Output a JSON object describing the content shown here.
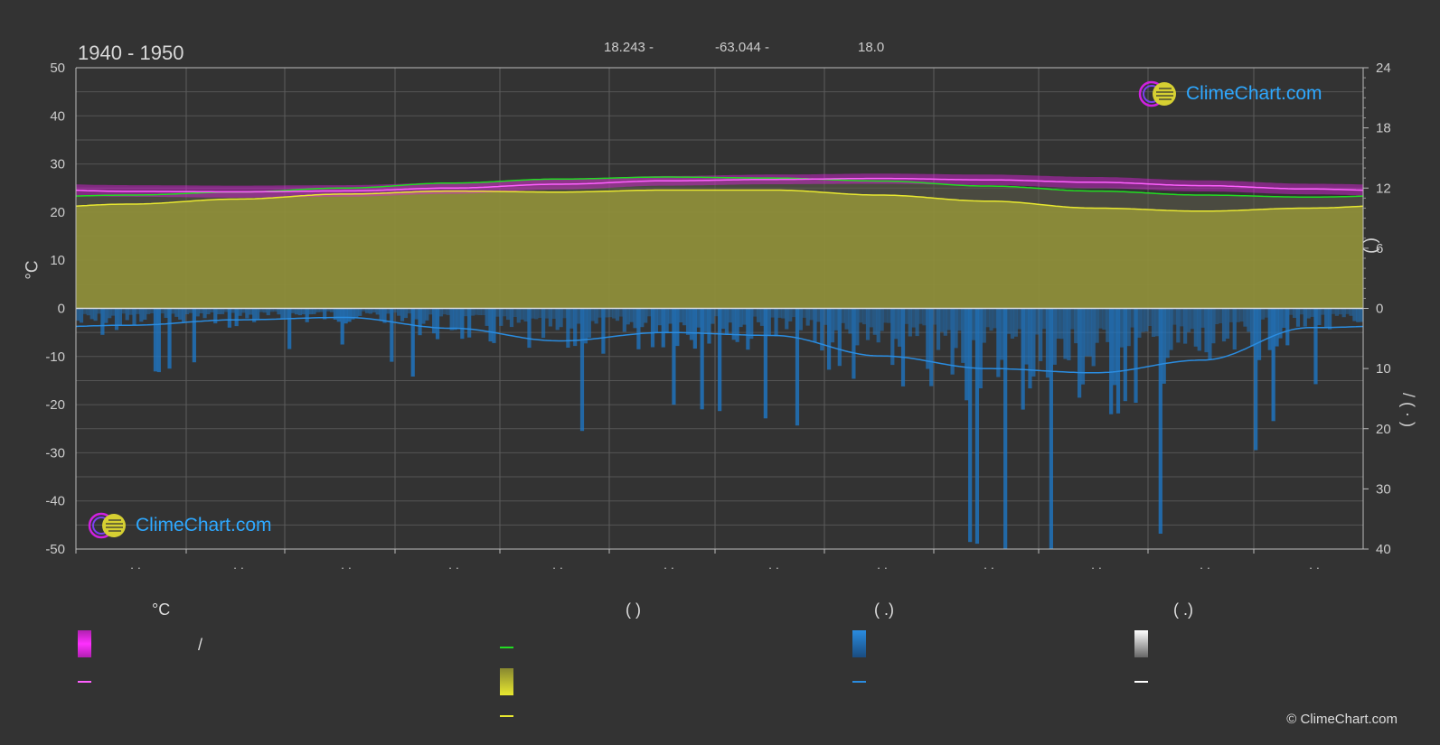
{
  "header": {
    "period": "1940 - 1950",
    "lat": "18.243 -",
    "lon": "-63.044 -",
    "elev": "18.0"
  },
  "axes": {
    "left_unit": "°C",
    "right_upper_label": "(    )",
    "right_lower_label": "/        (   ·   )"
  },
  "logo": {
    "text": "ClimeChart.com"
  },
  "copyright": "© ClimeChart.com",
  "legend": {
    "col1_head": "°C",
    "col2_head": "(          )",
    "col3_head": "(    .)",
    "col4_head": "(    .)",
    "col1_item1_text": "/",
    "colors": {
      "temp_range": "#e020e0",
      "temp_mean": "#ff60ff",
      "daylight": "#22dd22",
      "sunshine_fill": "#c8c832",
      "sunshine_line": "#e8e830",
      "precip_fill": "#1e78c8",
      "precip_line": "#2a8ce0",
      "snow_fill": "#cccccc",
      "snow_line": "#ffffff"
    }
  },
  "chart_data": {
    "type": "area",
    "x_categories": [
      "·  ·",
      "·  ·",
      "·  ·",
      "·  ·",
      "·  ·",
      "·  ·",
      "·  ·",
      "·  ·",
      "·  ·",
      "·  ·",
      "·  ·",
      "·  ·"
    ],
    "left_axis": {
      "unit": "°C",
      "ylim": [
        -50,
        50
      ],
      "ticks": [
        50,
        40,
        30,
        20,
        10,
        0,
        -10,
        -20,
        -30,
        -40,
        -50
      ]
    },
    "right_axis_upper": {
      "ylim": [
        0,
        24
      ],
      "ticks": [
        24,
        18,
        12,
        6,
        0
      ]
    },
    "right_axis_lower": {
      "ylim": [
        0,
        40
      ],
      "ticks": [
        0,
        10,
        20,
        30,
        40
      ]
    },
    "months_x": [
      0.5,
      1.5,
      2.5,
      3.5,
      4.5,
      5.5,
      6.5,
      7.5,
      8.5,
      9.5,
      10.5,
      11.5
    ],
    "temp_mean": [
      24.3,
      24.2,
      24.4,
      25.0,
      25.8,
      26.5,
      26.8,
      27.0,
      26.7,
      26.2,
      25.5,
      24.8
    ],
    "temp_max": [
      25.6,
      25.5,
      25.6,
      26.1,
      26.8,
      27.5,
      27.8,
      28.0,
      27.8,
      27.3,
      26.6,
      25.9
    ],
    "temp_min": [
      23.2,
      23.0,
      23.2,
      23.8,
      24.7,
      25.5,
      25.8,
      25.9,
      25.6,
      25.0,
      24.3,
      23.7
    ],
    "daylight_hours": [
      11.3,
      11.6,
      12.0,
      12.5,
      12.9,
      13.1,
      13.0,
      12.7,
      12.2,
      11.7,
      11.3,
      11.1
    ],
    "sunshine_hours": [
      10.4,
      10.9,
      11.4,
      11.7,
      11.6,
      11.8,
      11.8,
      11.3,
      10.7,
      10.0,
      9.7,
      10.0
    ],
    "precip_mm": [
      2.8,
      1.9,
      1.5,
      3.3,
      5.4,
      4.0,
      4.5,
      7.9,
      10.0,
      10.7,
      8.6,
      3.2
    ],
    "grid": true
  }
}
